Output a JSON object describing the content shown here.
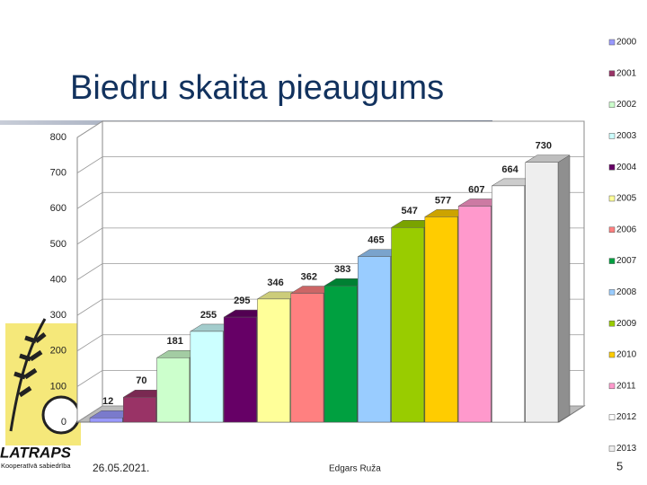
{
  "chart_data": {
    "type": "bar3d",
    "title": "Biedru skaita pieaugums",
    "categories": [
      "2000",
      "2001",
      "2002",
      "2003",
      "2004",
      "2005",
      "2006",
      "2007",
      "2008",
      "2009",
      "2010",
      "2011",
      "2012",
      "2013"
    ],
    "values": [
      12,
      70,
      181,
      255,
      295,
      346,
      362,
      383,
      465,
      547,
      577,
      607,
      664,
      730
    ],
    "colors": [
      "#9999ff",
      "#993366",
      "#ccffcc",
      "#ccffff",
      "#660066",
      "#ffff99",
      "#ff8080",
      "#00a040",
      "#99ccff",
      "#99cc00",
      "#ffcc00",
      "#ff99cc",
      "#ffffff",
      "#eeeeee"
    ],
    "ylim": [
      0,
      800
    ],
    "yticks": [
      0,
      100,
      200,
      300,
      400,
      500,
      600,
      700,
      800
    ],
    "grid": true,
    "legend": "right"
  },
  "footer": {
    "date": "26.05.2021.",
    "author": "Edgars Ruža",
    "page": "5"
  },
  "logo": {
    "name": "LATRAPS",
    "subtitle": "Kooperatīvā sabiedrība"
  }
}
